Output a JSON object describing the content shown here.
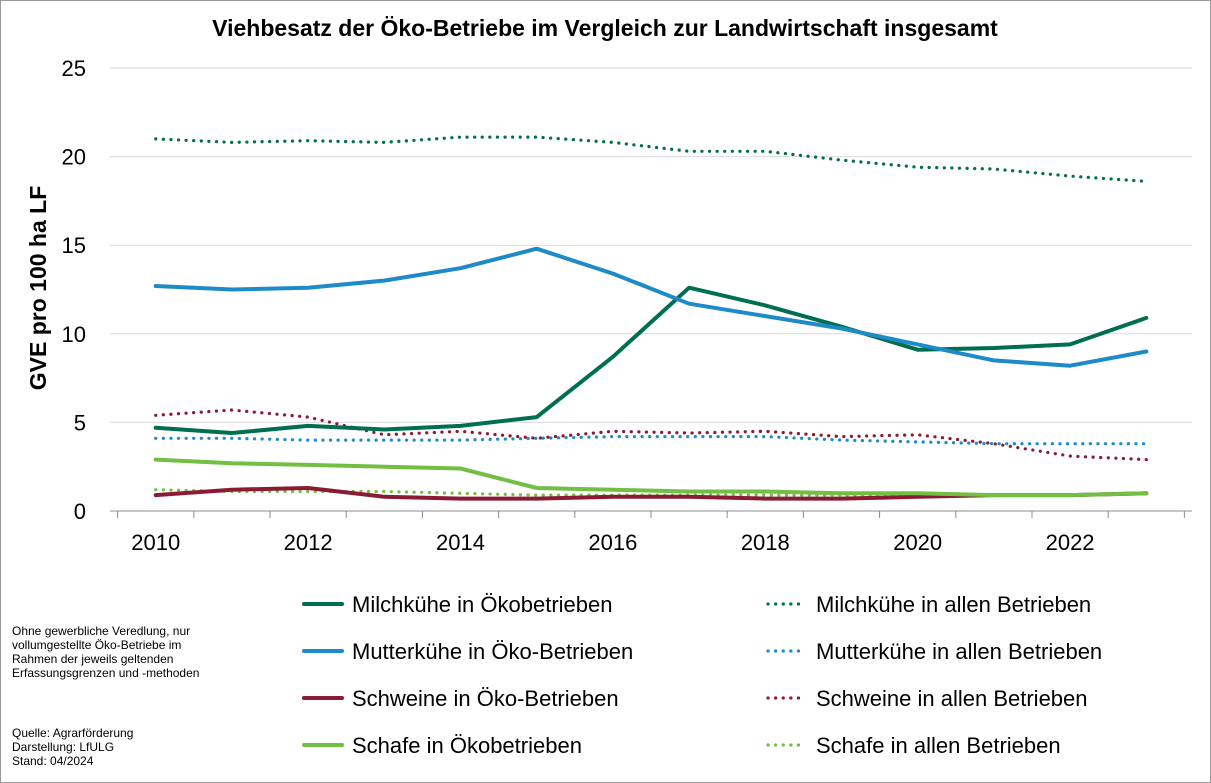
{
  "chart_data": {
    "type": "line",
    "title": "Viehbesatz der Öko-Betriebe im Vergleich zur Landwirtschaft insgesamt",
    "ylabel": "GVE pro 100 ha LF",
    "xlabel": "",
    "x": [
      2010,
      2011,
      2012,
      2013,
      2014,
      2015,
      2016,
      2017,
      2018,
      2019,
      2020,
      2021,
      2022,
      2023
    ],
    "xticks": [
      "2010",
      "2012",
      "2014",
      "2016",
      "2018",
      "2020",
      "2022"
    ],
    "yticks": [
      "0",
      "5",
      "10",
      "15",
      "20",
      "25"
    ],
    "xlim": [
      2009.4,
      2023.6
    ],
    "ylim": [
      0,
      25
    ],
    "grid": true,
    "legend_position": "bottom",
    "series": [
      {
        "name": "Milchkühe in Ökobetrieben",
        "color": "#006E50",
        "style": "solid",
        "values": [
          4.7,
          4.4,
          4.8,
          4.6,
          4.8,
          5.3,
          8.7,
          12.6,
          11.6,
          10.4,
          9.1,
          9.2,
          9.4,
          10.9
        ]
      },
      {
        "name": "Milchkühe in allen Betrieben",
        "color": "#006E50",
        "style": "dotted",
        "values": [
          21.0,
          20.8,
          20.9,
          20.8,
          21.1,
          21.1,
          20.8,
          20.3,
          20.3,
          19.8,
          19.4,
          19.3,
          18.9,
          18.6
        ]
      },
      {
        "name": "Mutterkühe in Öko-Betrieben",
        "color": "#1E8BC8",
        "style": "solid",
        "values": [
          12.7,
          12.5,
          12.6,
          13.0,
          13.7,
          14.8,
          13.4,
          11.7,
          11.0,
          10.3,
          9.4,
          8.5,
          8.2,
          9.0
        ]
      },
      {
        "name": "Mutterkühe in allen Betrieben",
        "color": "#1E8BC8",
        "style": "dotted",
        "values": [
          4.1,
          4.1,
          4.0,
          4.0,
          4.0,
          4.1,
          4.2,
          4.2,
          4.2,
          4.0,
          3.9,
          3.8,
          3.8,
          3.8
        ]
      },
      {
        "name": "Schweine in Öko-Betrieben",
        "color": "#8B1A35",
        "style": "solid",
        "values": [
          0.9,
          1.2,
          1.3,
          0.8,
          0.7,
          0.7,
          0.8,
          0.8,
          0.7,
          0.7,
          0.8,
          0.9,
          0.9,
          1.0
        ]
      },
      {
        "name": "Schweine in allen Betrieben",
        "color": "#8B1A35",
        "style": "dotted",
        "values": [
          5.4,
          5.7,
          5.3,
          4.3,
          4.5,
          4.1,
          4.5,
          4.4,
          4.5,
          4.2,
          4.3,
          3.8,
          3.1,
          2.9
        ]
      },
      {
        "name": "Schafe in Ökobetrieben",
        "color": "#72BF44",
        "style": "solid",
        "values": [
          2.9,
          2.7,
          2.6,
          2.5,
          2.4,
          1.3,
          1.2,
          1.1,
          1.1,
          1.0,
          1.0,
          0.9,
          0.9,
          1.0
        ]
      },
      {
        "name": "Schafe in allen Betrieben",
        "color": "#72BF44",
        "style": "dotted",
        "values": [
          1.2,
          1.1,
          1.1,
          1.1,
          1.0,
          0.9,
          0.9,
          0.9,
          0.9,
          0.9,
          0.9,
          0.9,
          0.9,
          1.0
        ]
      }
    ]
  },
  "notes": {
    "footnote_lines": [
      "Ohne gewerbliche Veredlung, nur",
      "vollumgestellte Öko-Betriebe im",
      "Rahmen der jeweils geltenden",
      "Erfassungsgrenzen und -methoden"
    ],
    "source": "Quelle: Agrarförderung",
    "author": "Darstellung: LfULG",
    "date": "Stand: 04/2024"
  }
}
